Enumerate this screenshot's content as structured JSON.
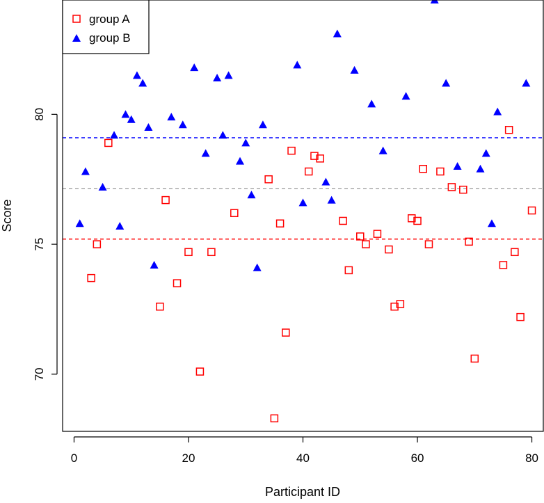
{
  "chart_data": {
    "type": "scatter",
    "title": "",
    "xlabel": "Participant ID",
    "ylabel": "Score",
    "xlim": [
      -2,
      82
    ],
    "ylim": [
      67.8,
      84.4
    ],
    "x_ticks": [
      0,
      20,
      40,
      60,
      80
    ],
    "y_ticks": [
      70,
      75,
      80
    ],
    "grid": false,
    "legend_position": "top-left",
    "series": [
      {
        "name": "group A",
        "marker": "open-square",
        "color": "#ff0000",
        "points": [
          {
            "x": 3,
            "y": 73.7
          },
          {
            "x": 4,
            "y": 75.0
          },
          {
            "x": 6,
            "y": 78.9
          },
          {
            "x": 15,
            "y": 72.6
          },
          {
            "x": 16,
            "y": 76.7
          },
          {
            "x": 18,
            "y": 73.5
          },
          {
            "x": 20,
            "y": 74.7
          },
          {
            "x": 22,
            "y": 70.1
          },
          {
            "x": 24,
            "y": 74.7
          },
          {
            "x": 28,
            "y": 76.2
          },
          {
            "x": 34,
            "y": 77.5
          },
          {
            "x": 35,
            "y": 68.3
          },
          {
            "x": 36,
            "y": 75.8
          },
          {
            "x": 37,
            "y": 71.6
          },
          {
            "x": 38,
            "y": 78.6
          },
          {
            "x": 41,
            "y": 77.8
          },
          {
            "x": 42,
            "y": 78.4
          },
          {
            "x": 43,
            "y": 78.3
          },
          {
            "x": 47,
            "y": 75.9
          },
          {
            "x": 48,
            "y": 74.0
          },
          {
            "x": 50,
            "y": 75.3
          },
          {
            "x": 51,
            "y": 75.0
          },
          {
            "x": 53,
            "y": 75.4
          },
          {
            "x": 55,
            "y": 74.8
          },
          {
            "x": 56,
            "y": 72.6
          },
          {
            "x": 57,
            "y": 72.7
          },
          {
            "x": 59,
            "y": 76.0
          },
          {
            "x": 60,
            "y": 75.9
          },
          {
            "x": 61,
            "y": 77.9
          },
          {
            "x": 62,
            "y": 75.0
          },
          {
            "x": 64,
            "y": 77.8
          },
          {
            "x": 66,
            "y": 77.2
          },
          {
            "x": 68,
            "y": 77.1
          },
          {
            "x": 69,
            "y": 75.1
          },
          {
            "x": 70,
            "y": 70.6
          },
          {
            "x": 75,
            "y": 74.2
          },
          {
            "x": 76,
            "y": 79.4
          },
          {
            "x": 77,
            "y": 74.7
          },
          {
            "x": 78,
            "y": 72.2
          },
          {
            "x": 80,
            "y": 76.3
          }
        ]
      },
      {
        "name": "group B",
        "marker": "filled-triangle",
        "color": "#0000ff",
        "points": [
          {
            "x": 1,
            "y": 75.8
          },
          {
            "x": 2,
            "y": 77.8
          },
          {
            "x": 5,
            "y": 77.2
          },
          {
            "x": 7,
            "y": 79.2
          },
          {
            "x": 8,
            "y": 75.7
          },
          {
            "x": 9,
            "y": 80.0
          },
          {
            "x": 10,
            "y": 79.8
          },
          {
            "x": 11,
            "y": 81.5
          },
          {
            "x": 12,
            "y": 81.2
          },
          {
            "x": 13,
            "y": 79.5
          },
          {
            "x": 14,
            "y": 74.2
          },
          {
            "x": 17,
            "y": 79.9
          },
          {
            "x": 19,
            "y": 79.6
          },
          {
            "x": 21,
            "y": 81.8
          },
          {
            "x": 23,
            "y": 78.5
          },
          {
            "x": 25,
            "y": 81.4
          },
          {
            "x": 26,
            "y": 79.2
          },
          {
            "x": 27,
            "y": 81.5
          },
          {
            "x": 29,
            "y": 78.2
          },
          {
            "x": 30,
            "y": 78.9
          },
          {
            "x": 31,
            "y": 76.9
          },
          {
            "x": 32,
            "y": 74.1
          },
          {
            "x": 33,
            "y": 79.6
          },
          {
            "x": 39,
            "y": 81.9
          },
          {
            "x": 40,
            "y": 76.6
          },
          {
            "x": 44,
            "y": 77.4
          },
          {
            "x": 45,
            "y": 76.7
          },
          {
            "x": 46,
            "y": 83.1
          },
          {
            "x": 49,
            "y": 81.7
          },
          {
            "x": 52,
            "y": 80.4
          },
          {
            "x": 54,
            "y": 78.6
          },
          {
            "x": 58,
            "y": 80.7
          },
          {
            "x": 63,
            "y": 84.4
          },
          {
            "x": 65,
            "y": 81.2
          },
          {
            "x": 67,
            "y": 78.0
          },
          {
            "x": 71,
            "y": 77.9
          },
          {
            "x": 72,
            "y": 78.5
          },
          {
            "x": 73,
            "y": 75.8
          },
          {
            "x": 74,
            "y": 80.1
          },
          {
            "x": 79,
            "y": 81.2
          }
        ]
      }
    ],
    "reference_lines": [
      {
        "y": 79.1,
        "color": "#0000ff",
        "style": "dashed"
      },
      {
        "y": 77.15,
        "color": "#aaaaaa",
        "style": "dashed"
      },
      {
        "y": 75.2,
        "color": "#ff0000",
        "style": "dashed"
      }
    ]
  }
}
